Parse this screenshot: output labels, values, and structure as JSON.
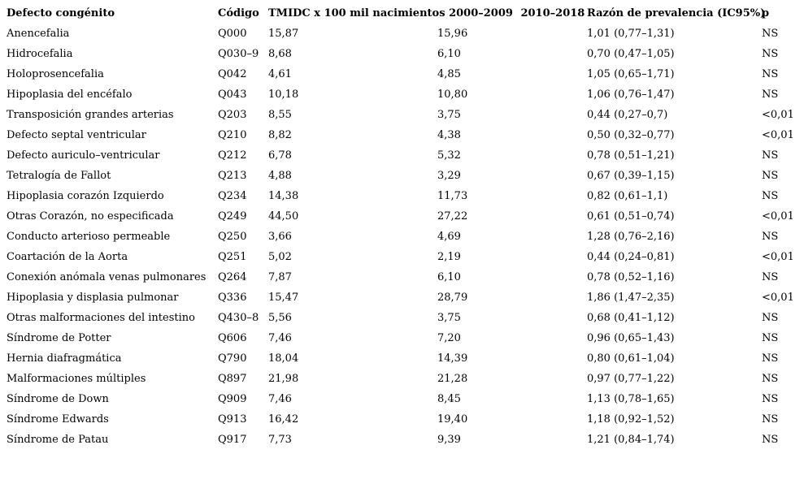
{
  "page": {
    "background_color": "#ffffff",
    "text_color": "#000000"
  },
  "table": {
    "headers": {
      "defect": "Defecto congénito",
      "code": "Código",
      "tmidc_label": "TMIDC x 100 mil nacimientos",
      "period1": "2000–2009",
      "period2": "2010–2018",
      "ratio": "Razón de prevalencia (IC95%)",
      "p": "p"
    },
    "rows": [
      {
        "defect": "Anencefalia",
        "code": "Q000",
        "tmidc_2000_2009": "15,87",
        "tmidc_2010_2018": "15,96",
        "ratio": "1,01 (0,77–1,31)",
        "p": "NS"
      },
      {
        "defect": "Hidrocefalia",
        "code": "Q030–9",
        "tmidc_2000_2009": "8,68",
        "tmidc_2010_2018": "6,10",
        "ratio": "0,70 (0,47–1,05)",
        "p": "NS"
      },
      {
        "defect": "Holoprosencefalia",
        "code": "Q042",
        "tmidc_2000_2009": "4,61",
        "tmidc_2010_2018": "4,85",
        "ratio": "1,05 (0,65–1,71)",
        "p": "NS"
      },
      {
        "defect": "Hipoplasia del encéfalo",
        "code": "Q043",
        "tmidc_2000_2009": "10,18",
        "tmidc_2010_2018": "10,80",
        "ratio": "1,06 (0,76–1,47)",
        "p": "NS"
      },
      {
        "defect": "Transposición grandes arterias",
        "code": "Q203",
        "tmidc_2000_2009": "8,55",
        "tmidc_2010_2018": "3,75",
        "ratio": "0,44 (0,27–0,7)",
        "p": "<0,01"
      },
      {
        "defect": "Defecto septal ventricular",
        "code": "Q210",
        "tmidc_2000_2009": "8,82",
        "tmidc_2010_2018": "4,38",
        "ratio": "0,50 (0,32–0,77)",
        "p": "<0,01"
      },
      {
        "defect": "Defecto auriculo–ventricular",
        "code": "Q212",
        "tmidc_2000_2009": "6,78",
        "tmidc_2010_2018": "5,32",
        "ratio": "0,78 (0,51–1,21)",
        "p": "NS"
      },
      {
        "defect": "Tetralogía de Fallot",
        "code": "Q213",
        "tmidc_2000_2009": "4,88",
        "tmidc_2010_2018": "3,29",
        "ratio": "0,67 (0,39–1,15)",
        "p": "NS"
      },
      {
        "defect": "Hipoplasia corazón Izquierdo",
        "code": "Q234",
        "tmidc_2000_2009": "14,38",
        "tmidc_2010_2018": "11,73",
        "ratio": "0,82 (0,61–1,1)",
        "p": "NS"
      },
      {
        "defect": "Otras Corazón, no especificada",
        "code": "Q249",
        "tmidc_2000_2009": "44,50",
        "tmidc_2010_2018": "27,22",
        "ratio": "0,61 (0,51–0,74)",
        "p": "<0,01"
      },
      {
        "defect": "Conducto arterioso permeable",
        "code": "Q250",
        "tmidc_2000_2009": "3,66",
        "tmidc_2010_2018": "4,69",
        "ratio": "1,28 (0,76–2,16)",
        "p": "NS"
      },
      {
        "defect": "Coartación de la Aorta",
        "code": "Q251",
        "tmidc_2000_2009": "5,02",
        "tmidc_2010_2018": "2,19",
        "ratio": "0,44 (0,24–0,81)",
        "p": "<0,01"
      },
      {
        "defect": "Conexión anómala venas pulmonares",
        "code": "Q264",
        "tmidc_2000_2009": "7,87",
        "tmidc_2010_2018": "6,10",
        "ratio": "0,78 (0,52–1,16)",
        "p": "NS"
      },
      {
        "defect": "Hipoplasia y displasia pulmonar",
        "code": "Q336",
        "tmidc_2000_2009": "15,47",
        "tmidc_2010_2018": "28,79",
        "ratio": "1,86 (1,47–2,35)",
        "p": "<0,01"
      },
      {
        "defect": "Otras malformaciones del intestino",
        "code": "Q430–8",
        "tmidc_2000_2009": "5,56",
        "tmidc_2010_2018": "3,75",
        "ratio": "0,68 (0,41–1,12)",
        "p": "NS"
      },
      {
        "defect": "Síndrome de Potter",
        "code": "Q606",
        "tmidc_2000_2009": "7,46",
        "tmidc_2010_2018": "7,20",
        "ratio": "0,96 (0,65–1,43)",
        "p": "NS"
      },
      {
        "defect": "Hernia diafragmática",
        "code": "Q790",
        "tmidc_2000_2009": "18,04",
        "tmidc_2010_2018": "14,39",
        "ratio": "0,80 (0,61–1,04)",
        "p": "NS"
      },
      {
        "defect": "Malformaciones múltiples",
        "code": "Q897",
        "tmidc_2000_2009": "21,98",
        "tmidc_2010_2018": "21,28",
        "ratio": "0,97 (0,77–1,22)",
        "p": "NS"
      },
      {
        "defect": "Síndrome de Down",
        "code": "Q909",
        "tmidc_2000_2009": "7,46",
        "tmidc_2010_2018": "8,45",
        "ratio": "1,13 (0,78–1,65)",
        "p": "NS"
      },
      {
        "defect": "Síndrome Edwards",
        "code": "Q913",
        "tmidc_2000_2009": "16,42",
        "tmidc_2010_2018": "19,40",
        "ratio": "1,18 (0,92–1,52)",
        "p": "NS"
      },
      {
        "defect": "Síndrome de Patau",
        "code": "Q917",
        "tmidc_2000_2009": "7,73",
        "tmidc_2010_2018": "9,39",
        "ratio": "1,21 (0,84–1,74)",
        "p": "NS"
      }
    ]
  }
}
